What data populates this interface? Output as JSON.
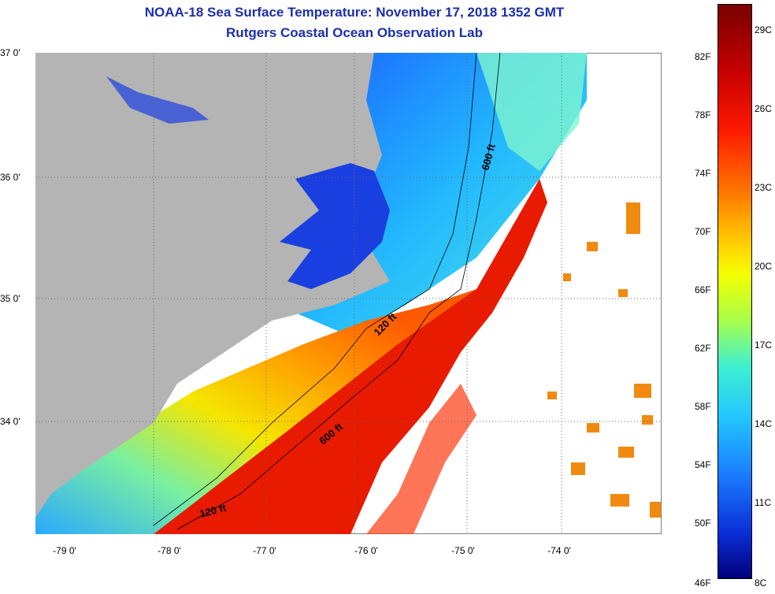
{
  "title": {
    "line1": "NOAA-18 Sea Surface Temperature:  November 17, 2018 1352 GMT",
    "line2": "Rutgers Coastal Ocean Observation Lab"
  },
  "lat_labels": [
    "37 0'",
    "36 0'",
    "35 0'",
    "34 0'"
  ],
  "lon_labels": [
    "-79 0'",
    "-78 0'",
    "-77 0'",
    "-76 0'",
    "-75 0'",
    "-74 0'"
  ],
  "contour_labels": [
    "600 ft",
    "120 ft",
    "600 ft",
    "120 ft"
  ],
  "colorbar": {
    "fahrenheit": [
      "82F",
      "78F",
      "74F",
      "70F",
      "66F",
      "62F",
      "58F",
      "54F",
      "50F",
      "46F"
    ],
    "celsius": [
      "29C",
      "26C",
      "23C",
      "20C",
      "17C",
      "14C",
      "11C",
      "8C"
    ]
  },
  "colors": {
    "title": "#1c2fa8",
    "land": "#b4b4b4",
    "warm": "#e81a00",
    "cold": "#1a4fe0"
  }
}
